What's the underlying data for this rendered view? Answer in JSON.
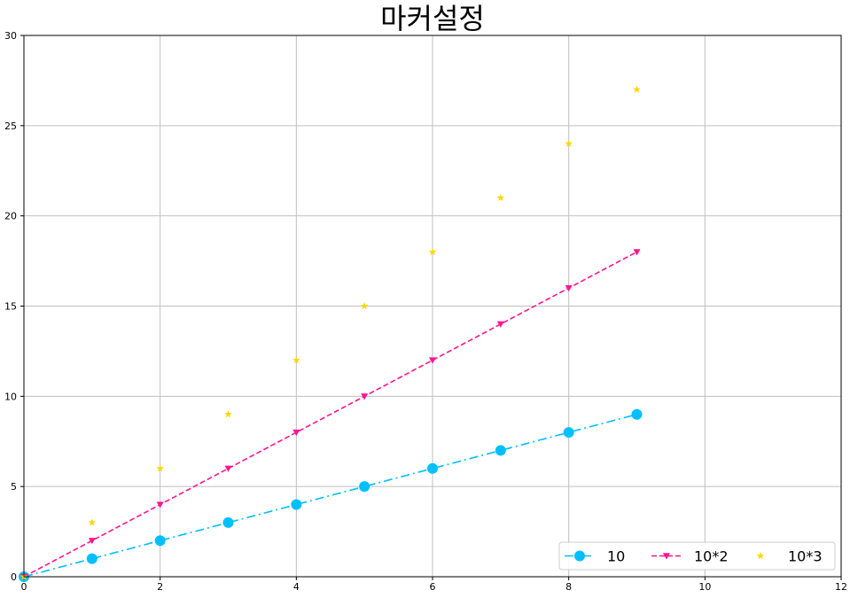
{
  "chart_data": {
    "type": "line",
    "title": "마커설정",
    "xlabel": "",
    "ylabel": "",
    "xlim": [
      0,
      12
    ],
    "ylim": [
      0,
      30
    ],
    "xticks": [
      0,
      2,
      4,
      6,
      8,
      10,
      12
    ],
    "yticks": [
      0,
      5,
      10,
      15,
      20,
      25,
      30
    ],
    "grid": true,
    "legend_position": "bottom-right",
    "x": [
      0,
      1,
      2,
      3,
      4,
      5,
      6,
      7,
      8,
      9
    ],
    "series": [
      {
        "name": "10",
        "values": [
          0,
          1,
          2,
          3,
          4,
          5,
          6,
          7,
          8,
          9
        ],
        "color": "#00BFFF",
        "marker": "circle",
        "linestyle": "dashdot"
      },
      {
        "name": "10*2",
        "values": [
          0,
          2,
          4,
          6,
          8,
          10,
          12,
          14,
          16,
          18
        ],
        "color": "#FF1493",
        "marker": "triangle-down",
        "linestyle": "dashed"
      },
      {
        "name": "10*3",
        "values": [
          0,
          3,
          6,
          9,
          12,
          15,
          18,
          21,
          24,
          27
        ],
        "color": "#FFD700",
        "marker": "star",
        "linestyle": "none"
      }
    ]
  }
}
